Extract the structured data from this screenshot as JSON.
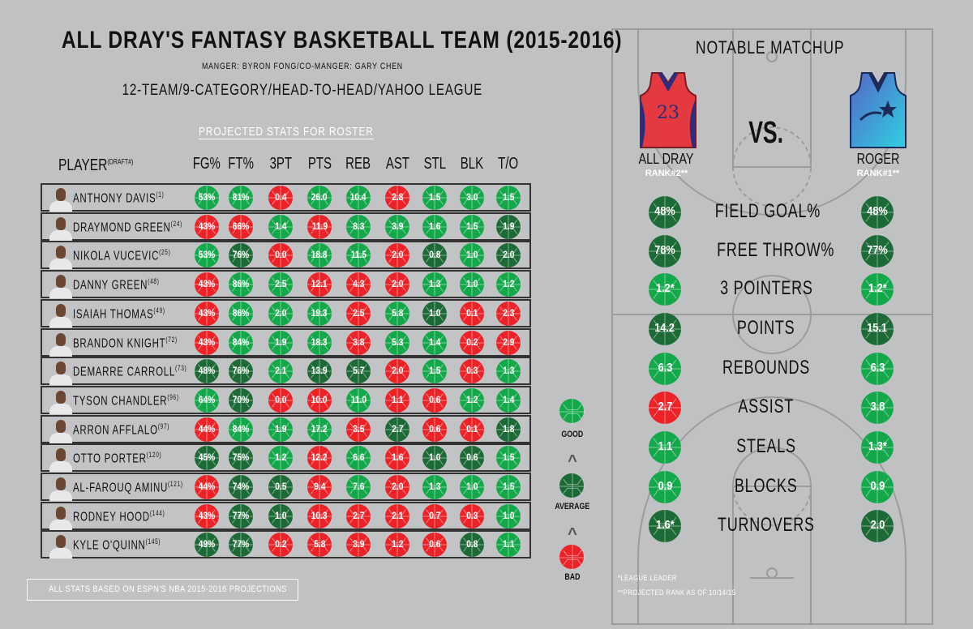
{
  "header": {
    "title": "ALL DRAY'S FANTASY BASKETBALL TEAM (2015-2016)",
    "managers": "MANGER: BYRON FONG/CO-MANGER: GARY CHEN",
    "league": "12-TEAM/9-CATEGORY/HEAD-TO-HEAD/YAHOO LEAGUE"
  },
  "roster": {
    "title": "PROJECTED STATS FOR ROSTER",
    "player_header": "PLAYER",
    "player_header_sup": "(DRAFT#)",
    "columns": [
      "FG%",
      "FT%",
      "3PT",
      "PTS",
      "REB",
      "AST",
      "STL",
      "BLK",
      "T/O"
    ],
    "players": [
      {
        "name": "ANTHONY DAVIS",
        "draft": "(1)",
        "stats": [
          "53%",
          "81%",
          "0.4",
          "26.0",
          "10.4",
          "2.8",
          "1.5",
          "3.0",
          "1.5"
        ],
        "ratings": [
          "good",
          "good",
          "bad",
          "good",
          "good",
          "bad",
          "good",
          "good",
          "good"
        ]
      },
      {
        "name": "DRAYMOND GREEN",
        "draft": "(24)",
        "stats": [
          "43%",
          "66%",
          "1.4",
          "11.9",
          "8.3",
          "3.9",
          "1.6",
          "1.5",
          "1.9"
        ],
        "ratings": [
          "bad",
          "bad",
          "good",
          "bad",
          "good",
          "good",
          "good",
          "good",
          "average"
        ]
      },
      {
        "name": "NIKOLA VUCEVIC",
        "draft": "(25)",
        "stats": [
          "53%",
          "76%",
          "0.0",
          "18.8",
          "11.5",
          "2.0",
          "0.8",
          "1.0",
          "2.0"
        ],
        "ratings": [
          "good",
          "average",
          "bad",
          "good",
          "good",
          "bad",
          "average",
          "good",
          "average"
        ]
      },
      {
        "name": "DANNY GREEN",
        "draft": "(48)",
        "stats": [
          "43%",
          "86%",
          "2.5",
          "12.1",
          "4.3",
          "2.0",
          "1.3",
          "1.0",
          "1.2"
        ],
        "ratings": [
          "bad",
          "good",
          "good",
          "bad",
          "bad",
          "bad",
          "good",
          "good",
          "good"
        ]
      },
      {
        "name": "ISAIAH THOMAS",
        "draft": "(49)",
        "stats": [
          "43%",
          "86%",
          "2.0",
          "19.3",
          "2.5",
          "5.8",
          "1.0",
          "0.1",
          "2.3"
        ],
        "ratings": [
          "bad",
          "good",
          "good",
          "good",
          "bad",
          "good",
          "average",
          "bad",
          "bad"
        ]
      },
      {
        "name": "BRANDON KNIGHT",
        "draft": "(72)",
        "stats": [
          "43%",
          "84%",
          "1.9",
          "18.3",
          "3.8",
          "5.3",
          "1.4",
          "0.2",
          "2.9"
        ],
        "ratings": [
          "bad",
          "good",
          "good",
          "good",
          "bad",
          "good",
          "good",
          "bad",
          "bad"
        ]
      },
      {
        "name": "DEMARRE CARROLL",
        "draft": "(73)",
        "stats": [
          "48%",
          "76%",
          "2.1",
          "13.9",
          "5.7",
          "2.0",
          "1.5",
          "0.3",
          "1.3"
        ],
        "ratings": [
          "average",
          "average",
          "good",
          "average",
          "average",
          "bad",
          "good",
          "bad",
          "good"
        ]
      },
      {
        "name": "TYSON CHANDLER",
        "draft": "(96)",
        "stats": [
          "64%",
          "70%",
          "0.0",
          "10.0",
          "11.0",
          "1.1",
          "0.6",
          "1.2",
          "1.4"
        ],
        "ratings": [
          "good",
          "average",
          "bad",
          "bad",
          "good",
          "bad",
          "bad",
          "good",
          "good"
        ]
      },
      {
        "name": "ARRON AFFLALO",
        "draft": "(97)",
        "stats": [
          "44%",
          "84%",
          "1.9",
          "17.2",
          "3.5",
          "2.7",
          "0.6",
          "0.1",
          "1.8"
        ],
        "ratings": [
          "bad",
          "good",
          "good",
          "good",
          "bad",
          "average",
          "bad",
          "bad",
          "average"
        ]
      },
      {
        "name": "OTTO PORTER",
        "draft": "(120)",
        "stats": [
          "45%",
          "75%",
          "1.2",
          "12.2",
          "6.6",
          "1.6",
          "1.0",
          "0.6",
          "1.5"
        ],
        "ratings": [
          "average",
          "average",
          "good",
          "bad",
          "good",
          "bad",
          "average",
          "average",
          "good"
        ]
      },
      {
        "name": "AL-FAROUQ AMINU",
        "draft": "(121)",
        "stats": [
          "44%",
          "74%",
          "0.5",
          "9.4",
          "7.6",
          "2.0",
          "1.3",
          "1.0",
          "1.5"
        ],
        "ratings": [
          "bad",
          "average",
          "average",
          "bad",
          "good",
          "bad",
          "good",
          "good",
          "good"
        ]
      },
      {
        "name": "RODNEY HOOD",
        "draft": "(144)",
        "stats": [
          "43%",
          "77%",
          "1.0",
          "10.3",
          "2.7",
          "2.1",
          "0.7",
          "0.3",
          "1.0"
        ],
        "ratings": [
          "bad",
          "average",
          "average",
          "bad",
          "bad",
          "bad",
          "bad",
          "bad",
          "good"
        ]
      },
      {
        "name": "KYLE O'QUINN",
        "draft": "(145)",
        "stats": [
          "49%",
          "77%",
          "0.2",
          "5.8",
          "3.9",
          "1.2",
          "0.6",
          "0.8",
          "1.1"
        ],
        "ratings": [
          "average",
          "average",
          "bad",
          "bad",
          "bad",
          "bad",
          "bad",
          "average",
          "good"
        ]
      }
    ]
  },
  "legend": {
    "good": "GOOD",
    "average": "AVERAGE",
    "bad": "BAD",
    "caret": "^"
  },
  "colors": {
    "good": "#13a84a",
    "average": "#1c6a35",
    "bad": "#ec2227",
    "court_line": "#9b9c9e"
  },
  "footer": "ALL STATS BASED ON ESPN'S NBA 2015-2016 PROJECTIONS",
  "matchup": {
    "title": "NOTABLE MATCHUP",
    "vs": "VS.",
    "jersey_number": "23",
    "team_a": {
      "name": "ALL DRAY",
      "rank": "RANK#2**"
    },
    "team_b": {
      "name": "ROGER",
      "rank": "RANK#1**"
    },
    "categories": [
      {
        "label": "FIELD GOAL%",
        "a": "48%",
        "a_rating": "average",
        "b": "48%",
        "b_rating": "average"
      },
      {
        "label": "FREE THROW%",
        "a": "78%",
        "a_rating": "average",
        "b": "77%",
        "b_rating": "average"
      },
      {
        "label": "3 POINTERS",
        "a": "1.2*",
        "a_rating": "good",
        "b": "1.2*",
        "b_rating": "good"
      },
      {
        "label": "POINTS",
        "a": "14.2",
        "a_rating": "average",
        "b": "15.1",
        "b_rating": "average"
      },
      {
        "label": "REBOUNDS",
        "a": "6.3",
        "a_rating": "good",
        "b": "6.3",
        "b_rating": "good"
      },
      {
        "label": "ASSIST",
        "a": "2.7",
        "a_rating": "bad",
        "b": "3.8",
        "b_rating": "good"
      },
      {
        "label": "STEALS",
        "a": "1.1",
        "a_rating": "good",
        "b": "1.3*",
        "b_rating": "good"
      },
      {
        "label": "BLOCKS",
        "a": "0.9",
        "a_rating": "good",
        "b": "0.9",
        "b_rating": "good"
      },
      {
        "label": "TURNOVERS",
        "a": "1.6*",
        "a_rating": "average",
        "b": "2.0",
        "b_rating": "average"
      }
    ],
    "footnotes": [
      "*LEAGUE LEADER",
      "**PROJECTED RANK AS OF 10/14/15"
    ]
  }
}
